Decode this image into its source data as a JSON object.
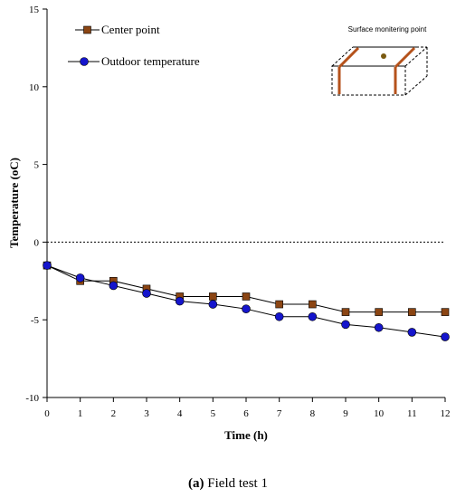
{
  "caption": {
    "label": "(a)",
    "text": " Field test 1"
  },
  "chart_data": {
    "type": "line",
    "title": "",
    "xlabel": "Time (h)",
    "ylabel": "Temperature  (oC)",
    "x": [
      0,
      1,
      2,
      3,
      4,
      5,
      6,
      7,
      8,
      9,
      10,
      11,
      12
    ],
    "xlim": [
      0,
      12
    ],
    "ylim": [
      -10,
      15
    ],
    "xticks": [
      "0",
      "1",
      "2",
      "3",
      "4",
      "5",
      "6",
      "7",
      "8",
      "9",
      "10",
      "11",
      "12"
    ],
    "yticks": [
      "-10",
      "-5",
      "0",
      "5",
      "10",
      "15"
    ],
    "ytick_values": [
      -10,
      -5,
      0,
      5,
      10,
      15
    ],
    "reference_line": {
      "y": 0,
      "style": "dotted"
    },
    "grid": false,
    "legend_position": "top-left",
    "series": [
      {
        "name": "Center point",
        "marker": "square",
        "color": "#8B4513",
        "values": [
          -1.5,
          -2.5,
          -2.5,
          -3.0,
          -3.5,
          -3.5,
          -3.5,
          -4.0,
          -4.0,
          -4.5,
          -4.5,
          -4.5,
          -4.5
        ]
      },
      {
        "name": "Outdoor temperature",
        "marker": "circle",
        "color": "#1515CC",
        "values": [
          -1.5,
          -2.3,
          -2.8,
          -3.3,
          -3.8,
          -4.0,
          -4.3,
          -4.8,
          -4.8,
          -5.3,
          -5.5,
          -5.8,
          -6.1
        ]
      }
    ],
    "inset": {
      "label": "Surface monitering point"
    }
  }
}
